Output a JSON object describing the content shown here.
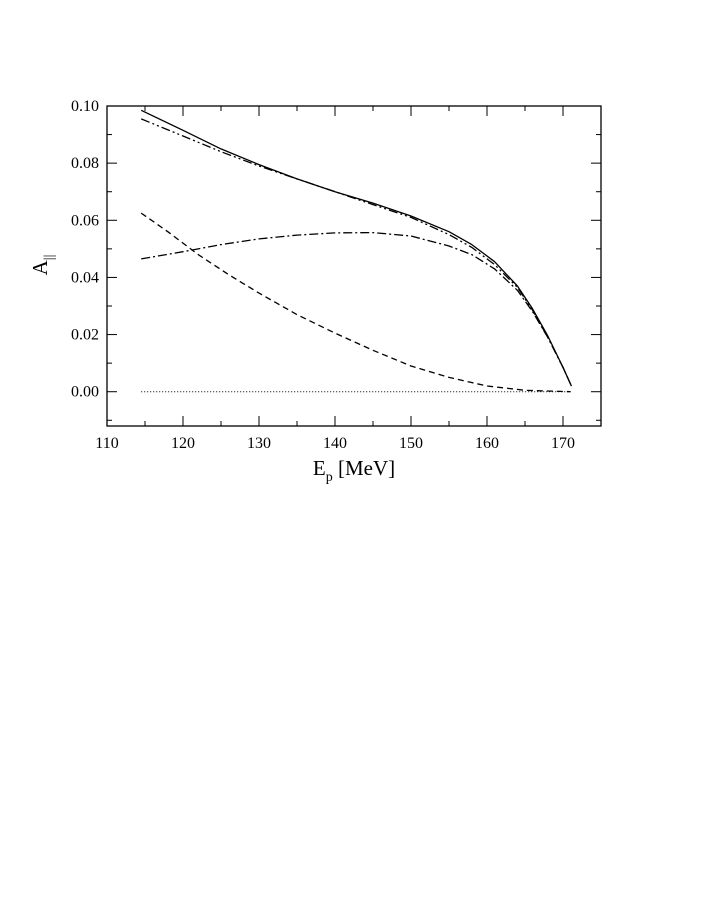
{
  "chart_data": {
    "type": "line",
    "title": "",
    "xlabel": {
      "main": "E",
      "sub": "p",
      "rest": " [MeV]"
    },
    "ylabel": {
      "main": "A",
      "sub": "||"
    },
    "xlim": [
      110,
      175
    ],
    "ylim": [
      -0.012,
      0.1
    ],
    "xticks": [
      "110",
      "120",
      "130",
      "140",
      "150",
      "160",
      "170"
    ],
    "yticks": [
      "0.00",
      "0.02",
      "0.04",
      "0.06",
      "0.08",
      "0.10"
    ],
    "grid": false,
    "legend": "none",
    "series": [
      {
        "style": "solid",
        "x": [
          114.5,
          120,
          125,
          130,
          135,
          140,
          145,
          150,
          155,
          158,
          161,
          164,
          166,
          168,
          170,
          171.1
        ],
        "y": [
          0.0985,
          0.0915,
          0.085,
          0.0795,
          0.0745,
          0.07,
          0.066,
          0.0615,
          0.056,
          0.0515,
          0.0455,
          0.037,
          0.029,
          0.0195,
          0.0085,
          0.002
        ]
      },
      {
        "style": "dash-dot-dot",
        "x": [
          114.5,
          120,
          125,
          130,
          135,
          140,
          145,
          150,
          155,
          158,
          161,
          164,
          166,
          168,
          170,
          171.1
        ],
        "y": [
          0.0955,
          0.0895,
          0.084,
          0.079,
          0.0745,
          0.07,
          0.0655,
          0.061,
          0.055,
          0.0505,
          0.0445,
          0.0365,
          0.0285,
          0.019,
          0.0085,
          0.002
        ]
      },
      {
        "style": "dash-dot",
        "x": [
          114.5,
          120,
          125,
          130,
          135,
          140,
          145,
          150,
          155,
          158,
          161,
          164,
          166,
          168,
          170,
          171.1
        ],
        "y": [
          0.0465,
          0.049,
          0.0515,
          0.0535,
          0.0548,
          0.0556,
          0.0557,
          0.0545,
          0.051,
          0.048,
          0.043,
          0.0355,
          0.028,
          0.019,
          0.0085,
          0.002
        ]
      },
      {
        "style": "dashed",
        "x": [
          114.5,
          118,
          122,
          126,
          130,
          135,
          140,
          145,
          150,
          155,
          160,
          165,
          171
        ],
        "y": [
          0.0625,
          0.056,
          0.048,
          0.041,
          0.0345,
          0.027,
          0.0205,
          0.0145,
          0.009,
          0.005,
          0.002,
          0.0005,
          0.0
        ]
      },
      {
        "style": "dotted",
        "x": [
          114.5,
          171
        ],
        "y": [
          0.0,
          0.0
        ]
      }
    ]
  }
}
